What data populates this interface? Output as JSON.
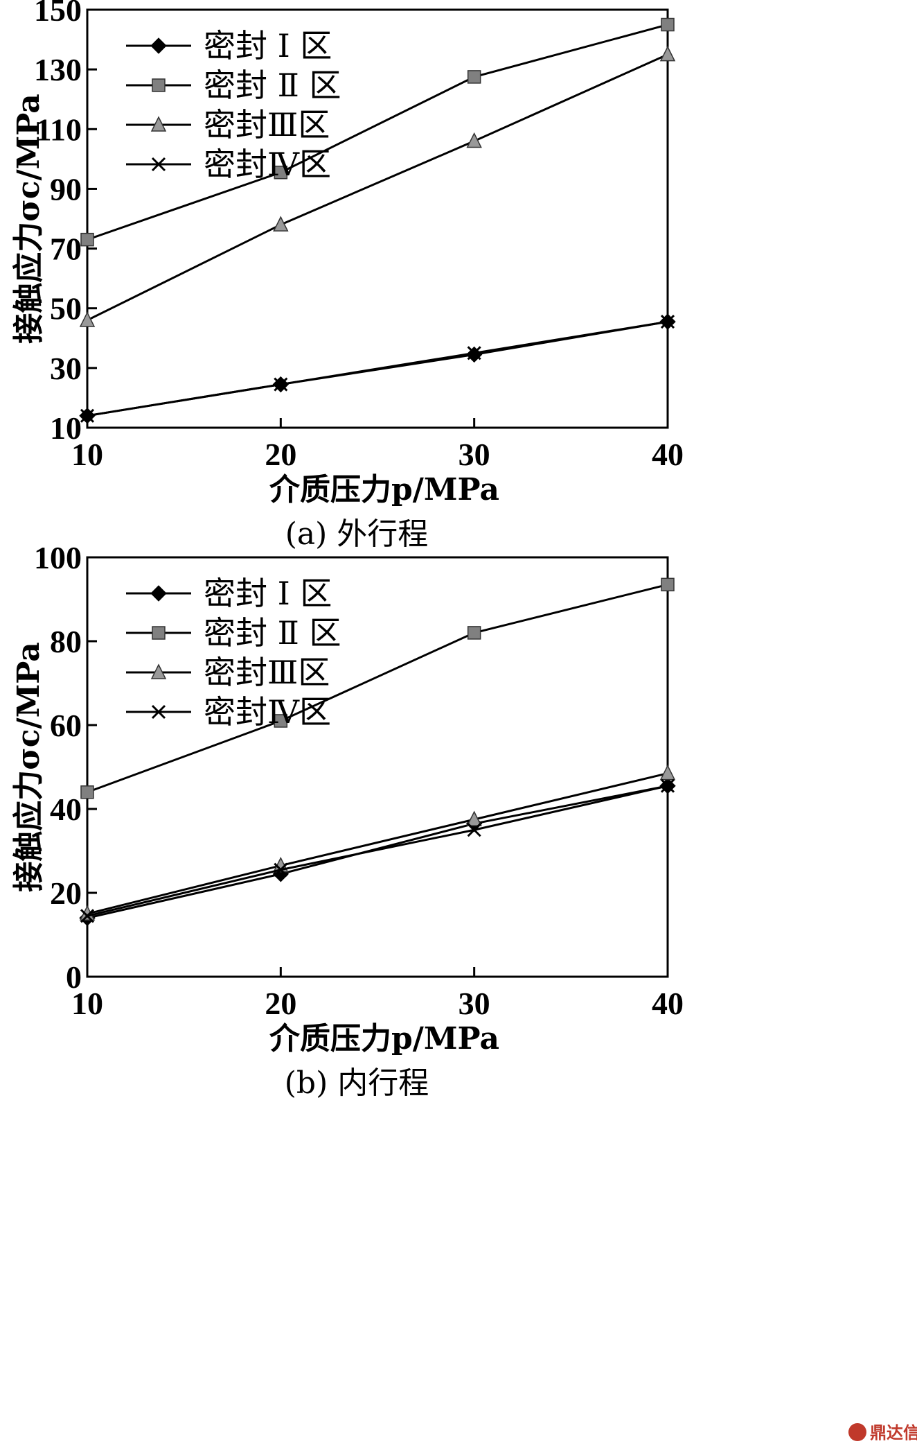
{
  "chart_data": [
    {
      "type": "line",
      "caption": "(a) 外行程",
      "xlabel": "介质压力p/MPa",
      "ylabel": "接触应力σc/MPa",
      "x": [
        10,
        20,
        30,
        40
      ],
      "xlim": [
        10,
        40
      ],
      "ylim": [
        10,
        150
      ],
      "xticks": [
        "10",
        "20",
        "30",
        "40"
      ],
      "yticks": [
        "10",
        "30",
        "50",
        "70",
        "90",
        "110",
        "130",
        "150"
      ],
      "grid": false,
      "legend_position": "top-left",
      "series": [
        {
          "name": "密封 Ⅰ 区",
          "marker": "diamond",
          "color": "#000000",
          "values": [
            14,
            24.5,
            34.5,
            45.5
          ]
        },
        {
          "name": "密封 Ⅱ 区",
          "marker": "square",
          "color": "#808080",
          "values": [
            73,
            95.5,
            127.5,
            145
          ]
        },
        {
          "name": "密封Ⅲ区",
          "marker": "triangle",
          "color": "#999999",
          "values": [
            46,
            78,
            106,
            135
          ]
        },
        {
          "name": "密封Ⅳ区",
          "marker": "x",
          "color": "#000000",
          "values": [
            14,
            24.5,
            35,
            45.5
          ]
        }
      ]
    },
    {
      "type": "line",
      "caption": "(b) 内行程",
      "xlabel": "介质压力p/MPa",
      "ylabel": "接触应力σc/MPa",
      "x": [
        10,
        20,
        30,
        40
      ],
      "xlim": [
        10,
        40
      ],
      "ylim": [
        0,
        100
      ],
      "xticks": [
        "10",
        "20",
        "30",
        "40"
      ],
      "yticks": [
        "0",
        "20",
        "40",
        "60",
        "80",
        "100"
      ],
      "grid": false,
      "legend_position": "top-left",
      "series": [
        {
          "name": "密封 Ⅰ 区",
          "marker": "diamond",
          "color": "#000000",
          "values": [
            14,
            24.5,
            36.5,
            45.5
          ]
        },
        {
          "name": "密封 Ⅱ 区",
          "marker": "square",
          "color": "#808080",
          "values": [
            44,
            61,
            82,
            93.5
          ]
        },
        {
          "name": "密封Ⅲ区",
          "marker": "triangle",
          "color": "#999999",
          "values": [
            15,
            26.5,
            37.5,
            48.5
          ]
        },
        {
          "name": "密封Ⅳ区",
          "marker": "x",
          "color": "#000000",
          "values": [
            14.5,
            25.5,
            35,
            45.5
          ]
        }
      ]
    }
  ],
  "watermark": "鼎达信"
}
